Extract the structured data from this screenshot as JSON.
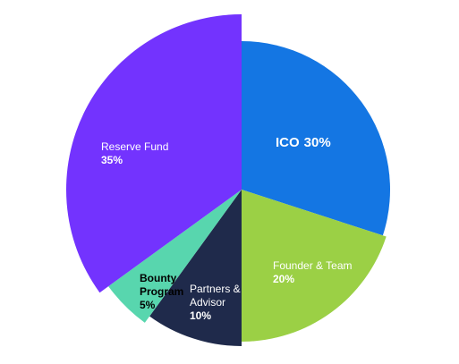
{
  "chart_data": {
    "type": "pie",
    "categories": [
      "ICO",
      "Founder & Team",
      "Partners & Advisor",
      "Bounty Program",
      "Reserve Fund"
    ],
    "values": [
      30,
      20,
      10,
      5,
      35
    ],
    "value_labels": [
      "30%",
      "20%",
      "10%",
      "5%",
      "35%"
    ],
    "colors": [
      "#1476e3",
      "#9bd045",
      "#1f2a4b",
      "#58d6ae",
      "#7333fe"
    ]
  }
}
